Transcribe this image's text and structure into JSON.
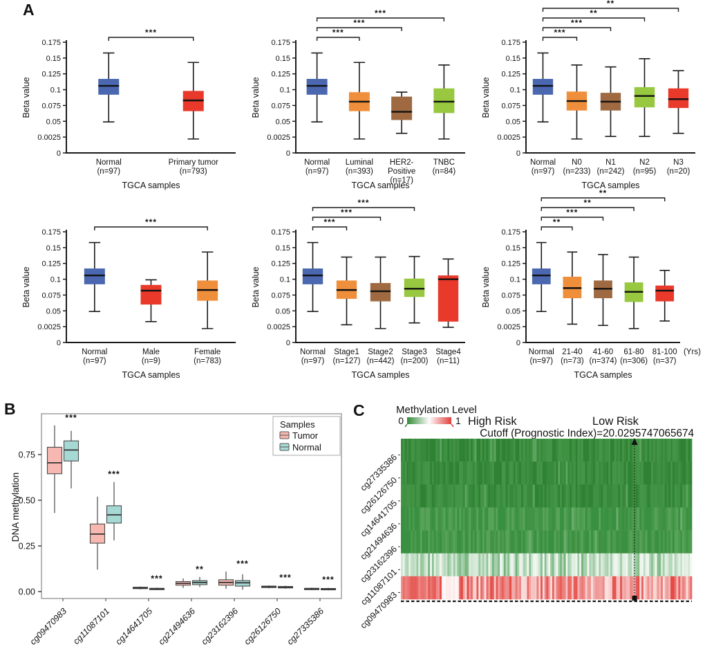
{
  "panels": {
    "a": "A",
    "b": "B",
    "c": "C"
  },
  "chart_data": [
    {
      "id": "a1",
      "panel": "A",
      "type": "box",
      "ylabel": "Beta value",
      "xlabel": "TGCA samples",
      "ylim": [
        0,
        0.175
      ],
      "yticks": [
        "0.175",
        "0.15",
        "0.125",
        "0.1",
        "0.075",
        "0.05",
        "0.0025",
        "0"
      ],
      "categories": [
        [
          "Normal",
          "(n=97)"
        ],
        [
          "Primary tumor",
          "(n=793)"
        ]
      ],
      "colors": [
        "#4A67B0",
        "#E8392B"
      ],
      "boxes": [
        [
          0.049,
          0.092,
          0.106,
          0.117,
          0.158
        ],
        [
          0.022,
          0.066,
          0.083,
          0.098,
          0.143
        ]
      ],
      "brackets": [
        {
          "from": 0,
          "to": 1,
          "stars": "***"
        }
      ],
      "axis_suffix": ""
    },
    {
      "id": "a2",
      "panel": "A",
      "type": "box",
      "ylabel": "Beta value",
      "xlabel": "TGCA samples",
      "ylim": [
        0,
        0.175
      ],
      "yticks": [
        "0.175",
        "0.15",
        "0.125",
        "0.1",
        "0.075",
        "0.05",
        "0.0025",
        "0"
      ],
      "categories": [
        [
          "Normal",
          "(n=97)"
        ],
        [
          "Luminal",
          "(n=393)"
        ],
        [
          "HER2-",
          "Positive",
          "(n=17)"
        ],
        [
          "TNBC",
          "(n=84)"
        ]
      ],
      "colors": [
        "#4A67B0",
        "#EF8F3C",
        "#9F6A42",
        "#97C83F"
      ],
      "boxes": [
        [
          0.049,
          0.092,
          0.106,
          0.117,
          0.158
        ],
        [
          0.022,
          0.066,
          0.081,
          0.096,
          0.143
        ],
        [
          0.031,
          0.052,
          0.065,
          0.089,
          0.096
        ],
        [
          0.022,
          0.063,
          0.081,
          0.102,
          0.139
        ]
      ],
      "brackets": [
        {
          "from": 0,
          "to": 1,
          "stars": "***"
        },
        {
          "from": 0,
          "to": 2,
          "stars": "***"
        },
        {
          "from": 0,
          "to": 3,
          "stars": "***"
        }
      ],
      "axis_suffix": ""
    },
    {
      "id": "a3",
      "panel": "A",
      "type": "box",
      "ylabel": "Beta value",
      "xlabel": "TGCA samples",
      "ylim": [
        0,
        0.175
      ],
      "yticks": [
        "0.175",
        "0.15",
        "0.125",
        "0.1",
        "0.075",
        "0.05",
        "0.0025",
        "0"
      ],
      "categories": [
        [
          "Normal",
          "(n=97)"
        ],
        [
          "N0",
          "(n=233)"
        ],
        [
          "N1",
          "(n=242)"
        ],
        [
          "N2",
          "(n=95)"
        ],
        [
          "N3",
          "(n=20)"
        ]
      ],
      "colors": [
        "#4A67B0",
        "#EF8F3C",
        "#9F6A42",
        "#97C83F",
        "#E8392B"
      ],
      "boxes": [
        [
          0.049,
          0.092,
          0.106,
          0.117,
          0.158
        ],
        [
          0.022,
          0.067,
          0.082,
          0.097,
          0.139
        ],
        [
          0.026,
          0.067,
          0.081,
          0.095,
          0.136
        ],
        [
          0.026,
          0.072,
          0.09,
          0.104,
          0.149
        ],
        [
          0.031,
          0.071,
          0.085,
          0.102,
          0.13
        ]
      ],
      "brackets": [
        {
          "from": 0,
          "to": 1,
          "stars": "***"
        },
        {
          "from": 0,
          "to": 2,
          "stars": "***"
        },
        {
          "from": 0,
          "to": 3,
          "stars": "**"
        },
        {
          "from": 0,
          "to": 4,
          "stars": "**"
        }
      ],
      "axis_suffix": ""
    },
    {
      "id": "a4",
      "panel": "A",
      "type": "box",
      "ylabel": "Beta value",
      "xlabel": "TGCA samples",
      "ylim": [
        0,
        0.175
      ],
      "yticks": [
        "0.175",
        "0.15",
        "0.125",
        "0.1",
        "0.075",
        "0.05",
        "0.0025",
        "0"
      ],
      "categories": [
        [
          "Normal",
          "(n=97)"
        ],
        [
          "Male",
          "(n=9)"
        ],
        [
          "Female",
          "(n=783)"
        ]
      ],
      "colors": [
        "#4A67B0",
        "#E8392B",
        "#EF8F3C"
      ],
      "boxes": [
        [
          0.049,
          0.092,
          0.106,
          0.117,
          0.158
        ],
        [
          0.033,
          0.06,
          0.082,
          0.091,
          0.099
        ],
        [
          0.022,
          0.066,
          0.083,
          0.098,
          0.143
        ]
      ],
      "brackets": [
        {
          "from": 0,
          "to": 2,
          "stars": "***"
        }
      ],
      "axis_suffix": ""
    },
    {
      "id": "a5",
      "panel": "A",
      "type": "box",
      "ylabel": "Beta value",
      "xlabel": "TGCA samples",
      "ylim": [
        0,
        0.175
      ],
      "yticks": [
        "0.175",
        "0.15",
        "0.125",
        "0.1",
        "0.075",
        "0.05",
        "0.0025",
        "0"
      ],
      "categories": [
        [
          "Normal",
          "(n=97)"
        ],
        [
          "Stage1",
          "(n=127)"
        ],
        [
          "Stage2",
          "(n=442)"
        ],
        [
          "Stage3",
          "(n=200)"
        ],
        [
          "Stage4",
          "(n=11)"
        ]
      ],
      "colors": [
        "#4A67B0",
        "#EF8F3C",
        "#9F6A42",
        "#97C83F",
        "#E8392B"
      ],
      "boxes": [
        [
          0.049,
          0.092,
          0.106,
          0.117,
          0.158
        ],
        [
          0.028,
          0.069,
          0.083,
          0.098,
          0.135
        ],
        [
          0.022,
          0.065,
          0.081,
          0.094,
          0.135
        ],
        [
          0.031,
          0.072,
          0.085,
          0.101,
          0.136
        ],
        [
          0.024,
          0.033,
          0.1,
          0.106,
          0.132
        ]
      ],
      "brackets": [
        {
          "from": 0,
          "to": 1,
          "stars": "***"
        },
        {
          "from": 0,
          "to": 2,
          "stars": "***"
        },
        {
          "from": 0,
          "to": 3,
          "stars": "***"
        }
      ],
      "axis_suffix": ""
    },
    {
      "id": "a6",
      "panel": "A",
      "type": "box",
      "ylabel": "Beta value",
      "xlabel": "TGCA samples",
      "ylim": [
        0,
        0.175
      ],
      "yticks": [
        "0.175",
        "0.15",
        "0.125",
        "0.1",
        "0.075",
        "0.05",
        "0.0025",
        "0"
      ],
      "categories": [
        [
          "Normal",
          "(n=97)"
        ],
        [
          "21-40",
          "(n=73)"
        ],
        [
          "41-60",
          "(n=374)"
        ],
        [
          "61-80",
          "(n=306)"
        ],
        [
          "81-100",
          "(n=37)"
        ]
      ],
      "colors": [
        "#4A67B0",
        "#EF8F3C",
        "#9F6A42",
        "#97C83F",
        "#E8392B"
      ],
      "boxes": [
        [
          0.049,
          0.092,
          0.106,
          0.117,
          0.158
        ],
        [
          0.029,
          0.07,
          0.086,
          0.104,
          0.143
        ],
        [
          0.027,
          0.07,
          0.085,
          0.098,
          0.139
        ],
        [
          0.022,
          0.064,
          0.08,
          0.095,
          0.135
        ],
        [
          0.034,
          0.065,
          0.082,
          0.09,
          0.114
        ]
      ],
      "brackets": [
        {
          "from": 0,
          "to": 1,
          "stars": "**"
        },
        {
          "from": 0,
          "to": 2,
          "stars": "***"
        },
        {
          "from": 0,
          "to": 3,
          "stars": "**"
        },
        {
          "from": 0,
          "to": 4,
          "stars": "**"
        }
      ],
      "axis_suffix": "(Yrs)"
    },
    {
      "id": "b",
      "panel": "B",
      "type": "box-grouped",
      "ylabel": "DNA methylation",
      "ylim": [
        0,
        0.95
      ],
      "ytick_vals": [
        0,
        0.25,
        0.5,
        0.75
      ],
      "yticks": [
        "0.00",
        "0.25",
        "0.50",
        "0.75"
      ],
      "categories": [
        "cg09470983",
        "cg11087101",
        "cg14641705",
        "cg21494636",
        "cg23162396",
        "cg26126750",
        "cg27335386"
      ],
      "stars": [
        "***",
        "***",
        "***",
        "**",
        "***",
        "***",
        "***"
      ],
      "legend": {
        "title": "Samples",
        "entries": [
          "Tumor",
          "Normal"
        ]
      },
      "series": [
        {
          "name": "Tumor",
          "color": "#F6B8B0",
          "boxes": [
            [
              0.43,
              0.645,
              0.705,
              0.79,
              0.91
            ],
            [
              0.12,
              0.265,
              0.315,
              0.37,
              0.52
            ],
            [
              0.012,
              0.016,
              0.02,
              0.024,
              0.028
            ],
            [
              0.02,
              0.035,
              0.045,
              0.055,
              0.072
            ],
            [
              0.015,
              0.035,
              0.05,
              0.065,
              0.11
            ],
            [
              0.018,
              0.022,
              0.026,
              0.03,
              0.034
            ],
            [
              0.008,
              0.012,
              0.015,
              0.018,
              0.022
            ]
          ]
        },
        {
          "name": "Normal",
          "color": "#A6D9D4",
          "boxes": [
            [
              0.565,
              0.715,
              0.775,
              0.825,
              0.88
            ],
            [
              0.28,
              0.375,
              0.42,
              0.47,
              0.6
            ],
            [
              0.008,
              0.012,
              0.015,
              0.018,
              0.022
            ],
            [
              0.025,
              0.038,
              0.05,
              0.06,
              0.08
            ],
            [
              0.01,
              0.03,
              0.048,
              0.06,
              0.095
            ],
            [
              0.016,
              0.02,
              0.024,
              0.028,
              0.032
            ],
            [
              0.007,
              0.011,
              0.014,
              0.017,
              0.021
            ]
          ]
        }
      ]
    },
    {
      "id": "c",
      "panel": "C",
      "type": "heatmap",
      "legend_title": "Methylation Level",
      "legend_min": "0",
      "legend_max": "1",
      "high_risk_label": "High Risk",
      "low_risk_label": "Low Risk",
      "cutoff_label": "Cutoff (Prognostic Index)=20.0295747065674",
      "cutoff_fraction": 0.803,
      "n_cols": 150,
      "seed": 7,
      "rows": [
        {
          "label": "cg27335386",
          "style": "green-dark"
        },
        {
          "label": "cg26126750",
          "style": "green-dark"
        },
        {
          "label": "cg14641705",
          "style": "green-dark"
        },
        {
          "label": "cg21494636",
          "style": "green-mid"
        },
        {
          "label": "cg23162396",
          "style": "green-mid"
        },
        {
          "label": "cg11087101",
          "style": "pale-mix"
        },
        {
          "label": "cg09470983",
          "style": "red-mix",
          "white_patch": [
            0.14,
            0.195
          ]
        }
      ],
      "palette": {
        "green_dark": [
          "#38893C",
          "#3F9142",
          "#2F8234",
          "#449547"
        ],
        "green_mid": [
          "#429346",
          "#4C9B4F",
          "#389040",
          "#57A35A"
        ],
        "pale_base": "#5EA867",
        "red_base": "#E23F3B",
        "gradient": [
          "#318A36",
          "#FDFDFD",
          "#E23F3B"
        ]
      }
    }
  ]
}
